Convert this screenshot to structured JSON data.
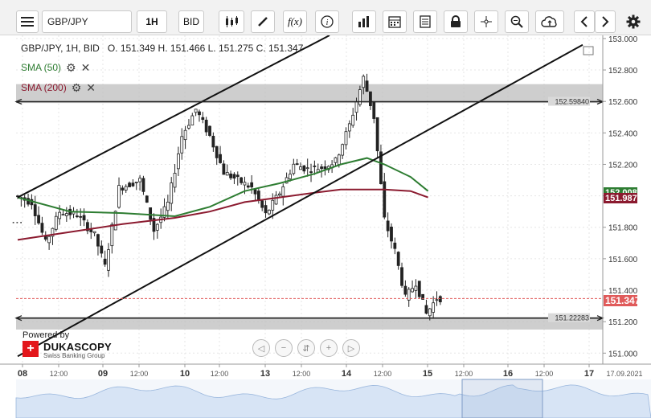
{
  "toolbar": {
    "symbol": "GBP/JPY",
    "timeframe": "1H",
    "price_type": "BID"
  },
  "info": {
    "header": "GBP/JPY, 1H, BID",
    "ohlc": "O. 151.349 H. 151.466 L. 151.275 C. 151.347"
  },
  "indicators": [
    {
      "label": "SMA (50)",
      "color": "#2e7d32"
    },
    {
      "label": "SMA (200)",
      "color": "#8b1a2f"
    }
  ],
  "price_tags": {
    "sma50_value": "152.008",
    "sma200_value": "151.987",
    "close_value": "151.347",
    "sma50_color": "#2e7d32",
    "sma200_color": "#8b1a2f",
    "close_color": "#e05a5a"
  },
  "logo": {
    "powered_by": "Powered by",
    "brand": "DUKASCOPY",
    "tagline": "Swiss Banking Group"
  },
  "chart_data": {
    "type": "candlestick",
    "timeframe": "1H",
    "y_axis_ticks": [
      "153.000",
      "152.800",
      "152.600",
      "152.400",
      "152.200",
      "152.000",
      "151.800",
      "151.600",
      "151.400",
      "151.200",
      "151.000"
    ],
    "ylim": [
      150.93,
      153.02
    ],
    "x_axis_ticks": [
      "08",
      "12:00",
      "09",
      "12:00",
      "10",
      "12:00",
      "13",
      "12:00",
      "14",
      "12:00",
      "15",
      "12:00",
      "16",
      "12:00",
      "17",
      "17.09.2021"
    ],
    "levels": [
      {
        "label": "152.59840",
        "value": 152.5984
      },
      {
        "label": "151.22283",
        "value": 151.22283
      }
    ],
    "zones": [
      {
        "from": 152.59,
        "to": 152.71
      },
      {
        "from": 151.15,
        "to": 151.23
      }
    ],
    "series": [
      {
        "name": "SMA (50)"
      },
      {
        "name": "SMA (200)"
      }
    ],
    "last_close": 151.347
  }
}
